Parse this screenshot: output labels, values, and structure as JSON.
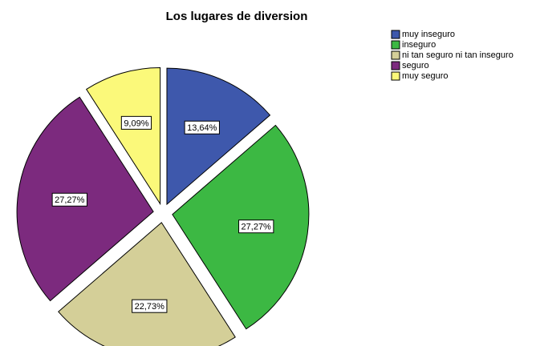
{
  "chart_data": {
    "type": "pie",
    "title": "Los lugares de diversion",
    "categories": [
      "muy inseguro",
      "inseguro",
      "ni tan seguro ni tan inseguro",
      "seguro",
      "muy seguro"
    ],
    "values": [
      13.64,
      27.27,
      22.73,
      27.27,
      9.09
    ],
    "value_labels": [
      "13,64%",
      "27,27%",
      "22,73%",
      "27,27%",
      "9,09%"
    ],
    "colors": [
      "#3e58ac",
      "#3cb843",
      "#d4cf98",
      "#7c2a7e",
      "#fbf97a"
    ],
    "legend": "upper right"
  }
}
